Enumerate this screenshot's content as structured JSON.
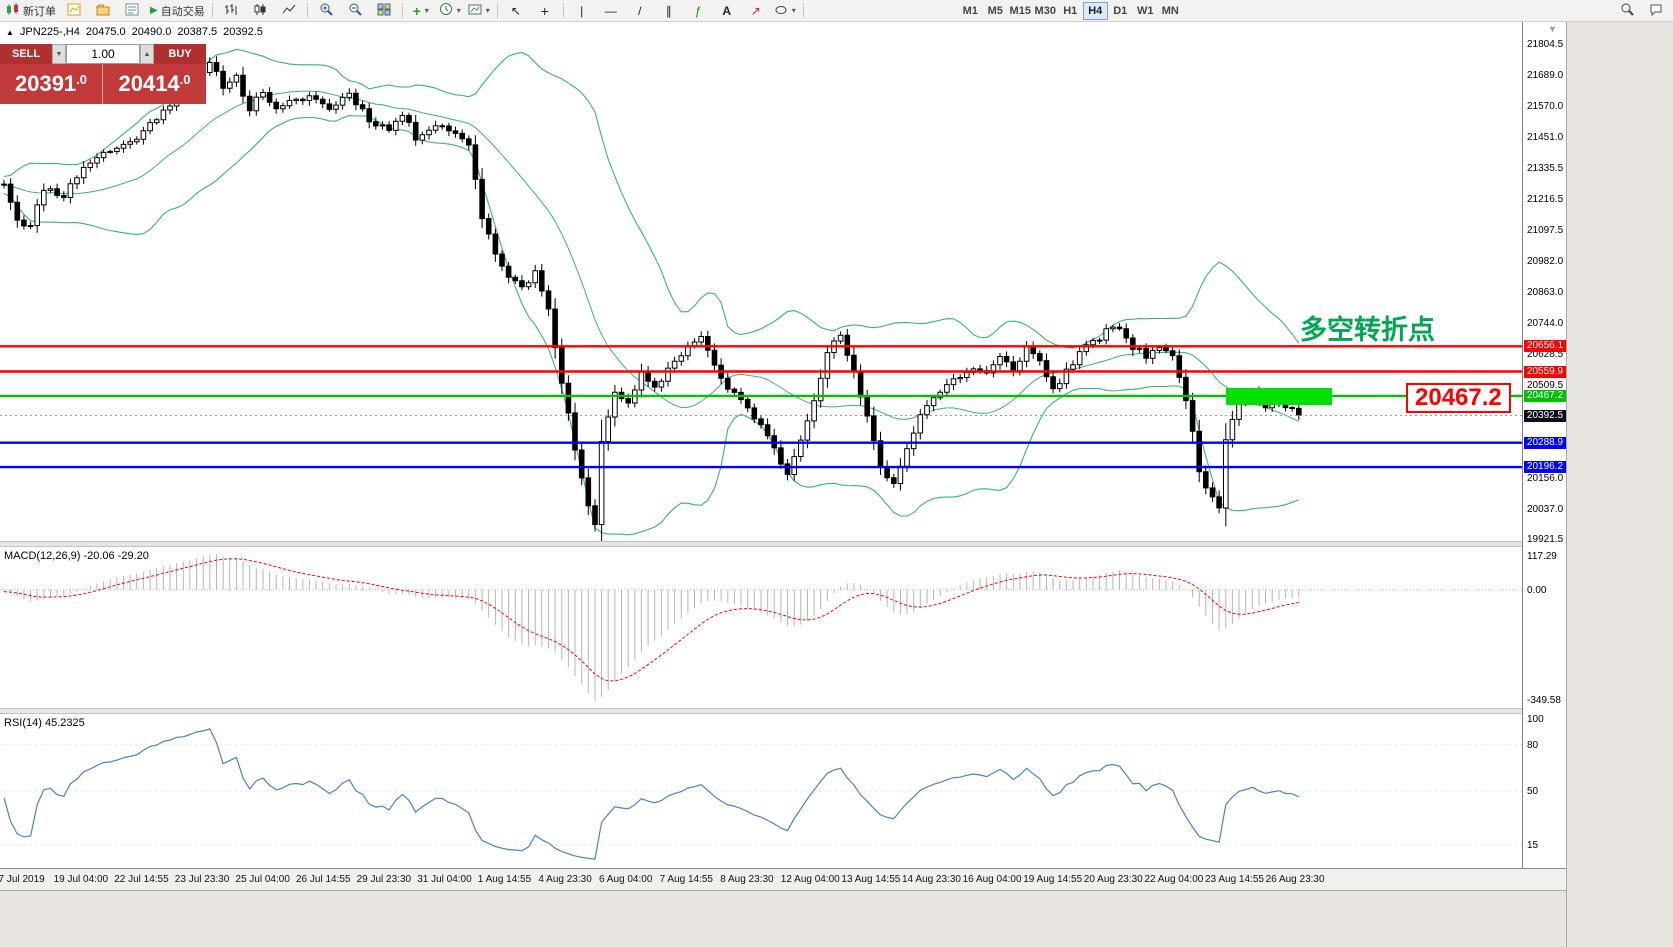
{
  "toolbar": {
    "new_order_label": "新订单",
    "autotrading_label": "自动交易",
    "timeframes": [
      "M1",
      "M5",
      "M15",
      "M30",
      "H1",
      "H4",
      "D1",
      "W1",
      "MN"
    ],
    "active_timeframe": "H4"
  },
  "icons": {
    "collapse_triangle": "▲",
    "shift_marker": "▼",
    "spin_up": "▲",
    "spin_down": "▼",
    "autotrading_play": "▶",
    "cursor": "↖",
    "crosshair": "+",
    "vertical_line": "|",
    "horizontal_line": "—",
    "trendline": "/",
    "channel": "∥",
    "fibonacci": "ƒ",
    "text_tool": "A",
    "arrows_tool": "↗",
    "indicator_plus": "+",
    "caret": "▾"
  },
  "trade_panel": {
    "sell_label": "SELL",
    "buy_label": "BUY",
    "volume": "1.00",
    "sell_price": "20391",
    "sell_price_frac": ".0",
    "buy_price": "20414",
    "buy_price_frac": ".0"
  },
  "chart_header": {
    "symbol_period": "JPN225-,H4",
    "open": "20475.0",
    "high": "20490.0",
    "low": "20387.5",
    "close": "20392.5"
  },
  "indicator_labels": {
    "macd": "MACD(12,26,9) -20.06 -29.20",
    "rsi": "RSI(14) 45.2325"
  },
  "annotations": {
    "turning_point": "多空转折点",
    "price_label": "20467.2"
  },
  "hlines": [
    {
      "price": 20656.1,
      "label": "20656.1",
      "color": "#ff0000",
      "width": 2.4
    },
    {
      "price": 20559.9,
      "label": "20559.9",
      "color": "#ff0000",
      "width": 2.4
    },
    {
      "price": 20467.2,
      "label": "20467.2",
      "color": "#00c000",
      "width": 2.4
    },
    {
      "price": 20288.9,
      "label": "20288.9",
      "color": "#0000ff",
      "width": 2.4
    },
    {
      "price": 20196.2,
      "label": "20196.2",
      "color": "#0000ff",
      "width": 2.4
    }
  ],
  "current_price": {
    "value": 20392.5,
    "label": "20392.5",
    "badge_color": "#0c0c18"
  },
  "axis": {
    "main_ticks": [
      "21804.5",
      "21689.0",
      "21570.0",
      "21451.0",
      "21335.5",
      "21216.5",
      "21097.5",
      "20982.0",
      "20863.0",
      "20744.0",
      "20628.5",
      "20509.5",
      "20156.0",
      "20037.0",
      "19921.5"
    ],
    "macd_ticks": {
      "top": "117.29",
      "zero": "0.00",
      "bottom": "-349.58"
    },
    "rsi_ticks": [
      "100",
      "80",
      "50",
      "15"
    ]
  },
  "time_axis": [
    "17 Jul 2019",
    "19 Jul 04:00",
    "22 Jul 14:55",
    "23 Jul 23:30",
    "25 Jul 04:00",
    "26 Jul 14:55",
    "29 Jul 23:30",
    "31 Jul 04:00",
    "1 Aug 14:55",
    "4 Aug 23:30",
    "6 Aug 04:00",
    "7 Aug 14:55",
    "8 Aug 23:30",
    "12 Aug 04:00",
    "13 Aug 14:55",
    "14 Aug 23:30",
    "16 Aug 04:00",
    "19 Aug 14:55",
    "20 Aug 23:30",
    "22 Aug 04:00",
    "23 Aug 14:55",
    "26 Aug 23:30"
  ],
  "colors": {
    "band_green": "#3cb371",
    "annotation_green": "#00a651",
    "callout_red": "#ff0000",
    "panel_red": "#c13a3a",
    "panel_red_dark": "#b03030",
    "highlight_green": "#00e000",
    "macd_histogram": "#b4b4b4",
    "macd_signal": "#ff0000",
    "rsi_line": "#4f81bd",
    "bull_body": "#ffffff",
    "bear_body": "#000000"
  },
  "chart_data": {
    "type": "candlestick",
    "symbol": "JPN225-",
    "period": "H4",
    "bars": 196,
    "price_domain": [
      19915,
      21890
    ],
    "close_waypoints": [
      [
        0,
        21280
      ],
      [
        2,
        21140
      ],
      [
        4,
        21110
      ],
      [
        6,
        21260
      ],
      [
        9,
        21230
      ],
      [
        12,
        21340
      ],
      [
        15,
        21390
      ],
      [
        18,
        21420
      ],
      [
        21,
        21470
      ],
      [
        24,
        21560
      ],
      [
        27,
        21620
      ],
      [
        30,
        21690
      ],
      [
        31,
        21730
      ],
      [
        33,
        21650
      ],
      [
        35,
        21680
      ],
      [
        37,
        21560
      ],
      [
        39,
        21630
      ],
      [
        41,
        21550
      ],
      [
        43,
        21580
      ],
      [
        46,
        21610
      ],
      [
        49,
        21560
      ],
      [
        52,
        21620
      ],
      [
        55,
        21520
      ],
      [
        58,
        21480
      ],
      [
        60,
        21540
      ],
      [
        62,
        21450
      ],
      [
        64,
        21490
      ],
      [
        66,
        21500
      ],
      [
        68,
        21460
      ],
      [
        70,
        21430
      ],
      [
        72,
        21150
      ],
      [
        74,
        21010
      ],
      [
        76,
        20930
      ],
      [
        78,
        20870
      ],
      [
        80,
        20950
      ],
      [
        82,
        20790
      ],
      [
        84,
        20520
      ],
      [
        86,
        20260
      ],
      [
        88,
        20040
      ],
      [
        89,
        19990
      ],
      [
        90,
        20290
      ],
      [
        92,
        20490
      ],
      [
        94,
        20430
      ],
      [
        96,
        20550
      ],
      [
        98,
        20490
      ],
      [
        100,
        20570
      ],
      [
        102,
        20630
      ],
      [
        105,
        20700
      ],
      [
        107,
        20580
      ],
      [
        109,
        20490
      ],
      [
        111,
        20450
      ],
      [
        113,
        20390
      ],
      [
        115,
        20310
      ],
      [
        118,
        20170
      ],
      [
        120,
        20310
      ],
      [
        122,
        20460
      ],
      [
        124,
        20630
      ],
      [
        126,
        20700
      ],
      [
        128,
        20550
      ],
      [
        130,
        20380
      ],
      [
        132,
        20200
      ],
      [
        134,
        20130
      ],
      [
        136,
        20270
      ],
      [
        138,
        20400
      ],
      [
        140,
        20460
      ],
      [
        143,
        20530
      ],
      [
        146,
        20570
      ],
      [
        148,
        20550
      ],
      [
        150,
        20610
      ],
      [
        152,
        20570
      ],
      [
        154,
        20650
      ],
      [
        156,
        20600
      ],
      [
        158,
        20490
      ],
      [
        160,
        20560
      ],
      [
        162,
        20630
      ],
      [
        164,
        20670
      ],
      [
        166,
        20710
      ],
      [
        168,
        20730
      ],
      [
        170,
        20650
      ],
      [
        172,
        20620
      ],
      [
        174,
        20660
      ],
      [
        176,
        20610
      ],
      [
        178,
        20460
      ],
      [
        180,
        20190
      ],
      [
        182,
        20070
      ],
      [
        183,
        20040
      ],
      [
        184,
        20310
      ],
      [
        186,
        20450
      ],
      [
        188,
        20480
      ],
      [
        190,
        20430
      ],
      [
        192,
        20450
      ],
      [
        194,
        20415
      ],
      [
        195,
        20392
      ]
    ],
    "indicators": {
      "bollinger_period": 20,
      "bollinger_dev": 2,
      "macd_fast": 12,
      "macd_slow": 26,
      "macd_signal": 9,
      "rsi_period": 14
    },
    "seed": 11
  }
}
